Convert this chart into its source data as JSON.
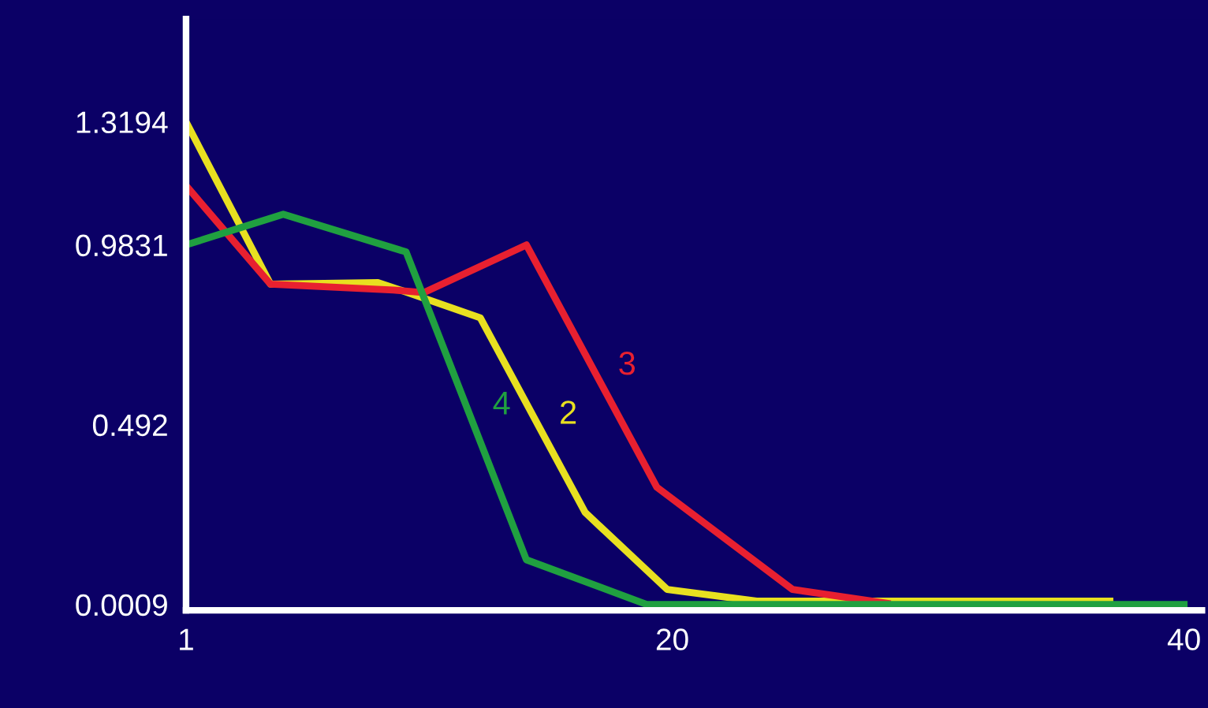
{
  "chart_data": {
    "type": "line",
    "xlim": [
      1,
      40.7
    ],
    "ylim": [
      -0.015,
      1.6
    ],
    "xticks": [
      1,
      20,
      40
    ],
    "yticks": [
      0.0009,
      0.492,
      0.9831,
      1.3194
    ],
    "grid": false,
    "legend": false,
    "marker": "none",
    "line_style": "solid",
    "series": [
      {
        "name": "2",
        "color": "#e8e020",
        "x": [
          1,
          4.3,
          8.5,
          9.5,
          12.5,
          16.6,
          19.8,
          23.3,
          37.1
        ],
        "values": [
          1.3194,
          0.876,
          0.88,
          0.857,
          0.784,
          0.252,
          0.042,
          0.01,
          0.01
        ]
      },
      {
        "name": "3",
        "color": "#e82030",
        "x": [
          1,
          4.3,
          9.1,
          10.3,
          14.3,
          19.4,
          24.7,
          28.4
        ],
        "values": [
          1.145,
          0.876,
          0.86,
          0.853,
          0.9831,
          0.321,
          0.042,
          0.004
        ]
      },
      {
        "name": "4",
        "color": "#20a040",
        "x": [
          1,
          4.8,
          9.6,
          14.3,
          19.0,
          40
        ],
        "values": [
          0.9831,
          1.067,
          0.964,
          0.123,
          0.0009,
          0.0009
        ]
      }
    ]
  }
}
